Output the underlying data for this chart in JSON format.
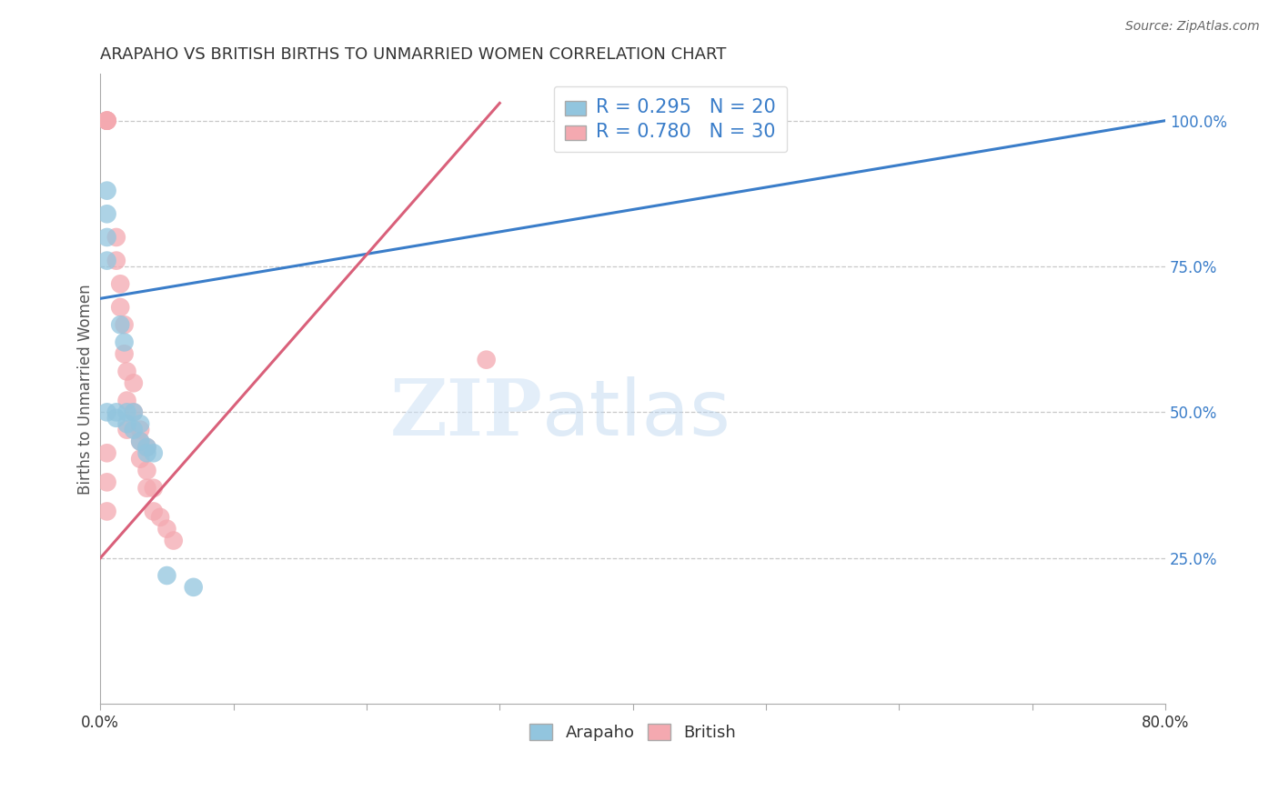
{
  "title": "ARAPAHO VS BRITISH BIRTHS TO UNMARRIED WOMEN CORRELATION CHART",
  "source": "Source: ZipAtlas.com",
  "ylabel": "Births to Unmarried Women",
  "xlim": [
    0.0,
    0.8
  ],
  "ylim": [
    0.0,
    1.08
  ],
  "ytick_labels": [
    "25.0%",
    "50.0%",
    "75.0%",
    "100.0%"
  ],
  "ytick_values": [
    0.25,
    0.5,
    0.75,
    1.0
  ],
  "arapaho_color": "#92c5de",
  "british_color": "#f4a9b0",
  "arapaho_line_color": "#3a7dc9",
  "british_line_color": "#d9607a",
  "background_color": "#ffffff",
  "grid_color": "#c8c8c8",
  "arapaho_x": [
    0.005,
    0.005,
    0.005,
    0.005,
    0.005,
    0.012,
    0.012,
    0.015,
    0.018,
    0.02,
    0.02,
    0.025,
    0.025,
    0.03,
    0.03,
    0.035,
    0.035,
    0.04,
    0.05,
    0.07
  ],
  "arapaho_y": [
    0.88,
    0.84,
    0.8,
    0.76,
    0.5,
    0.5,
    0.49,
    0.65,
    0.62,
    0.5,
    0.48,
    0.5,
    0.47,
    0.48,
    0.45,
    0.44,
    0.43,
    0.43,
    0.22,
    0.2
  ],
  "british_x": [
    0.005,
    0.005,
    0.005,
    0.005,
    0.005,
    0.005,
    0.005,
    0.012,
    0.012,
    0.015,
    0.015,
    0.018,
    0.018,
    0.02,
    0.02,
    0.02,
    0.025,
    0.025,
    0.03,
    0.03,
    0.03,
    0.035,
    0.035,
    0.035,
    0.04,
    0.04,
    0.045,
    0.05,
    0.055,
    0.29
  ],
  "british_y": [
    1.0,
    1.0,
    1.0,
    1.0,
    0.43,
    0.38,
    0.33,
    0.8,
    0.76,
    0.72,
    0.68,
    0.65,
    0.6,
    0.57,
    0.52,
    0.47,
    0.55,
    0.5,
    0.47,
    0.45,
    0.42,
    0.44,
    0.4,
    0.37,
    0.37,
    0.33,
    0.32,
    0.3,
    0.28,
    0.59
  ],
  "watermark_zip": "ZIP",
  "watermark_atlas": "atlas"
}
